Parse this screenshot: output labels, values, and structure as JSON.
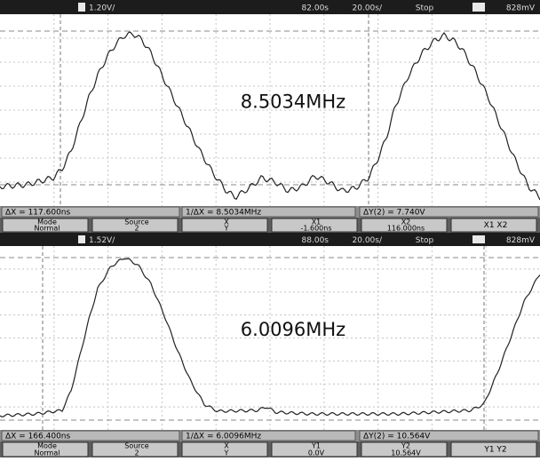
{
  "panels": [
    {
      "top_bar": {
        "scale": "1.20V/",
        "delay": "82.00s",
        "timebase": "20.00s/",
        "state": "Stop",
        "trigger": "828mV"
      },
      "annotation": "8.5034MHz",
      "status": [
        "ΔX = 117.600ns",
        "1/ΔX = 8.5034MHz",
        "ΔY(2) = 7.740V"
      ],
      "softkeys": [
        {
          "label": "Mode",
          "value": "Normal"
        },
        {
          "label": "Source",
          "value": "2"
        },
        {
          "label": "X",
          "value": "Y"
        },
        {
          "label": "X1",
          "value": "-1.600ns"
        },
        {
          "label": "X2",
          "value": "116.000ns"
        },
        {
          "label": "X1 X2"
        }
      ]
    },
    {
      "top_bar": {
        "scale": "1.52V/",
        "delay": "88.00s",
        "timebase": "20.00s/",
        "state": "Stop",
        "trigger": "828mV"
      },
      "annotation": "6.0096MHz",
      "status": [
        "ΔX = 166.400ns",
        "1/ΔX = 6.0096MHz",
        "ΔY(2) = 10.564V"
      ],
      "softkeys": [
        {
          "label": "Mode",
          "value": "Normal"
        },
        {
          "label": "Source",
          "value": "2"
        },
        {
          "label": "X",
          "value": "Y"
        },
        {
          "label": "Y1",
          "value": "0.0V"
        },
        {
          "label": "Y2",
          "value": "10.564V"
        },
        {
          "label": "Y1 Y2"
        }
      ]
    }
  ]
}
